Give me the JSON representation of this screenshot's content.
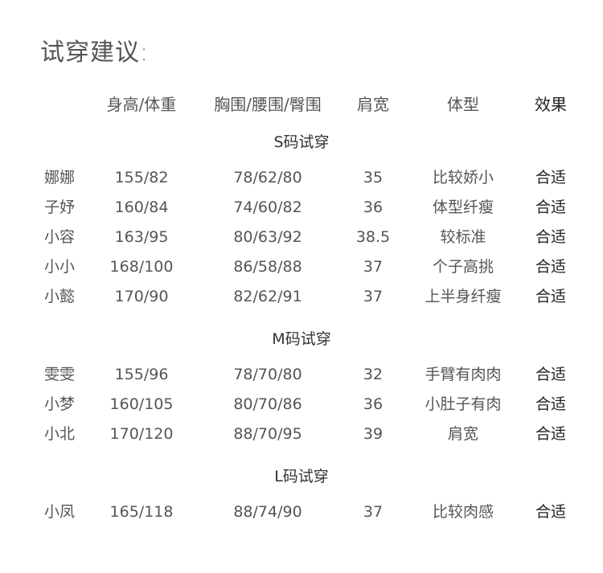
{
  "title": "试穿建议:",
  "headers": [
    "",
    "身高/体重",
    "胸围/腰围/臀围",
    "肩宽",
    "体型",
    "效果"
  ],
  "sections": [
    {
      "label": "S码试穿",
      "rows": [
        [
          "娜娜",
          "155/82",
          "78/62/80",
          "35",
          "比较娇小",
          "合适"
        ],
        [
          "子妤",
          "160/84",
          "74/60/82",
          "36",
          "体型纤瘦",
          "合适"
        ],
        [
          "小容",
          "163/95",
          "80/63/92",
          "38.5",
          "较标准",
          "合适"
        ],
        [
          "小小",
          "168/100",
          "86/58/88",
          "37",
          "个子高挑",
          "合适"
        ],
        [
          "小懿",
          "170/90",
          "82/62/91",
          "37",
          "上半身纤瘦",
          "合适"
        ]
      ]
    },
    {
      "label": "M码试穿",
      "rows": [
        [
          "雯雯",
          "155/96",
          "78/70/80",
          "32",
          "手臂有肉肉",
          "合适"
        ],
        [
          "小梦",
          "160/105",
          "80/70/86",
          "36",
          "小肚子有肉",
          "合适"
        ],
        [
          "小北",
          "170/120",
          "88/70/95",
          "39",
          "肩宽",
          "合适"
        ]
      ]
    },
    {
      "label": "L码试穿",
      "rows": [
        [
          "小凤",
          "165/118",
          "88/74/90",
          "37",
          "比较肉感",
          "合适"
        ]
      ]
    }
  ]
}
